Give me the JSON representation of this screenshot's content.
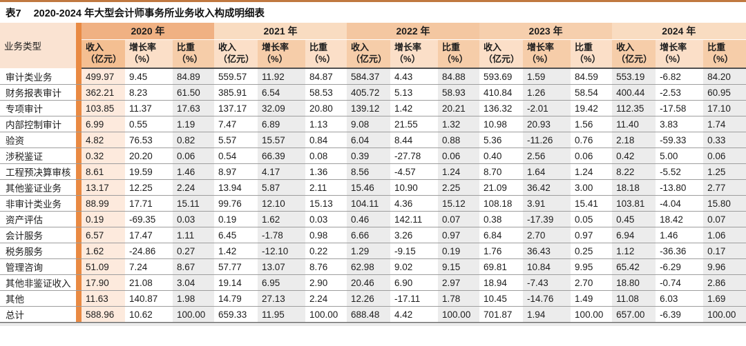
{
  "page": {
    "title_prefix": "表7",
    "title": "2020-2024 年大型会计师事务所业务收入构成明细表"
  },
  "table": {
    "corner_header": "业务类型",
    "years": [
      "2020 年",
      "2021 年",
      "2022 年",
      "2023 年",
      "2024 年"
    ],
    "sub_columns": [
      "收入\n（亿元）",
      "增长率\n（%）",
      "比重\n（%）"
    ],
    "rows": [
      {
        "label": "审计类业务",
        "values": [
          "499.97",
          "9.45",
          "84.89",
          "559.57",
          "11.92",
          "84.87",
          "584.37",
          "4.43",
          "84.88",
          "593.69",
          "1.59",
          "84.59",
          "553.19",
          "-6.82",
          "84.20"
        ]
      },
      {
        "label": "财务报表审计",
        "values": [
          "362.21",
          "8.23",
          "61.50",
          "385.91",
          "6.54",
          "58.53",
          "405.72",
          "5.13",
          "58.93",
          "410.84",
          "1.26",
          "58.54",
          "400.44",
          "-2.53",
          "60.95"
        ]
      },
      {
        "label": "专项审计",
        "values": [
          "103.85",
          "11.37",
          "17.63",
          "137.17",
          "32.09",
          "20.80",
          "139.12",
          "1.42",
          "20.21",
          "136.32",
          "-2.01",
          "19.42",
          "112.35",
          "-17.58",
          "17.10"
        ]
      },
      {
        "label": "内部控制审计",
        "values": [
          "6.99",
          "0.55",
          "1.19",
          "7.47",
          "6.89",
          "1.13",
          "9.08",
          "21.55",
          "1.32",
          "10.98",
          "20.93",
          "1.56",
          "11.40",
          "3.83",
          "1.74"
        ]
      },
      {
        "label": "验资",
        "values": [
          "4.82",
          "76.53",
          "0.82",
          "5.57",
          "15.57",
          "0.84",
          "6.04",
          "8.44",
          "0.88",
          "5.36",
          "-11.26",
          "0.76",
          "2.18",
          "-59.33",
          "0.33"
        ]
      },
      {
        "label": "涉税鉴证",
        "values": [
          "0.32",
          "20.20",
          "0.06",
          "0.54",
          "66.39",
          "0.08",
          "0.39",
          "-27.78",
          "0.06",
          "0.40",
          "2.56",
          "0.06",
          "0.42",
          "5.00",
          "0.06"
        ]
      },
      {
        "label": "工程预决算审核",
        "values": [
          "8.61",
          "19.59",
          "1.46",
          "8.97",
          "4.17",
          "1.36",
          "8.56",
          "-4.57",
          "1.24",
          "8.70",
          "1.64",
          "1.24",
          "8.22",
          "-5.52",
          "1.25"
        ]
      },
      {
        "label": "其他鉴证业务",
        "values": [
          "13.17",
          "12.25",
          "2.24",
          "13.94",
          "5.87",
          "2.11",
          "15.46",
          "10.90",
          "2.25",
          "21.09",
          "36.42",
          "3.00",
          "18.18",
          "-13.80",
          "2.77"
        ]
      },
      {
        "label": "非审计类业务",
        "values": [
          "88.99",
          "17.71",
          "15.11",
          "99.76",
          "12.10",
          "15.13",
          "104.11",
          "4.36",
          "15.12",
          "108.18",
          "3.91",
          "15.41",
          "103.81",
          "-4.04",
          "15.80"
        ]
      },
      {
        "label": "资产评估",
        "values": [
          "0.19",
          "-69.35",
          "0.03",
          "0.19",
          "1.62",
          "0.03",
          "0.46",
          "142.11",
          "0.07",
          "0.38",
          "-17.39",
          "0.05",
          "0.45",
          "18.42",
          "0.07"
        ]
      },
      {
        "label": "会计服务",
        "values": [
          "6.57",
          "17.47",
          "1.11",
          "6.45",
          "-1.78",
          "0.98",
          "6.66",
          "3.26",
          "0.97",
          "6.84",
          "2.70",
          "0.97",
          "6.94",
          "1.46",
          "1.06"
        ]
      },
      {
        "label": "税务服务",
        "values": [
          "1.62",
          "-24.86",
          "0.27",
          "1.42",
          "-12.10",
          "0.22",
          "1.29",
          "-9.15",
          "0.19",
          "1.76",
          "36.43",
          "0.25",
          "1.12",
          "-36.36",
          "0.17"
        ]
      },
      {
        "label": "管理咨询",
        "values": [
          "51.09",
          "7.24",
          "8.67",
          "57.77",
          "13.07",
          "8.76",
          "62.98",
          "9.02",
          "9.15",
          "69.81",
          "10.84",
          "9.95",
          "65.42",
          "-6.29",
          "9.96"
        ]
      },
      {
        "label": "其他非鉴证收入",
        "values": [
          "17.90",
          "21.08",
          "3.04",
          "19.14",
          "6.95",
          "2.90",
          "20.46",
          "6.90",
          "2.97",
          "18.94",
          "-7.43",
          "2.70",
          "18.80",
          "-0.74",
          "2.86"
        ]
      },
      {
        "label": "其他",
        "values": [
          "11.63",
          "140.87",
          "1.98",
          "14.79",
          "27.13",
          "2.24",
          "12.26",
          "-17.11",
          "1.78",
          "10.45",
          "-14.76",
          "1.49",
          "11.08",
          "6.03",
          "1.69"
        ]
      },
      {
        "label": "总计",
        "values": [
          "588.96",
          "10.62",
          "100.00",
          "659.33",
          "11.95",
          "100.00",
          "688.48",
          "4.42",
          "100.00",
          "701.87",
          "1.94",
          "100.00",
          "657.00",
          "-6.39",
          "100.00"
        ]
      }
    ]
  },
  "colors": {
    "rule": "#c07840",
    "accent": "#e98a43",
    "corner-bg": "#fae3d2",
    "y2020": "#f0b183",
    "y2021": "#f9dcc1",
    "y2022": "#f4c7a1",
    "y2023": "#f6cfad",
    "y2024": "#f9dcc1",
    "sub-first": "#f4bf92",
    "sub-light": "#fbdfc8",
    "sub-mid": "#f6cda9",
    "col-first": "#fdeadd",
    "col-gray": "#ececec",
    "row-line": "#9d9d9d",
    "header-line": "#4f4f4f"
  }
}
